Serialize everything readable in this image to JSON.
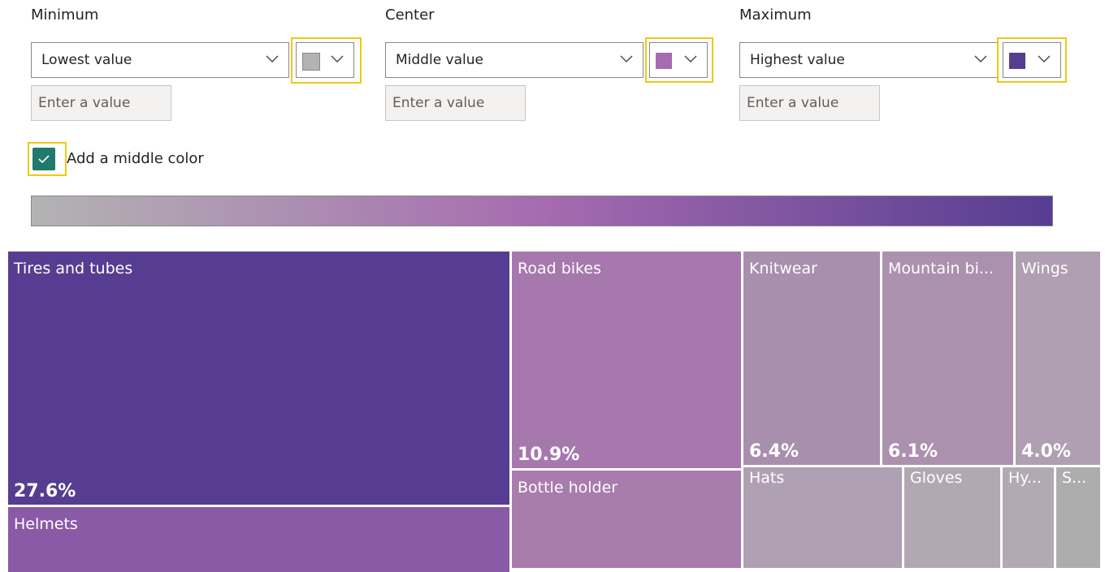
{
  "color_settings": {
    "minimum": {
      "label": "Minimum",
      "dropdown": "Lowest value",
      "input_placeholder": "Enter a value"
    },
    "center": {
      "label": "Center",
      "dropdown": "Middle value",
      "input_placeholder": "Enter a value"
    },
    "maximum": {
      "label": "Maximum",
      "dropdown": "Highest value",
      "input_placeholder": "Enter a value"
    },
    "middle_color_checkbox": "Add a middle color"
  },
  "treemap": {
    "tiles": [
      {
        "label": "Tires and tubes",
        "value": "27.6%"
      },
      {
        "label": "Helmets"
      },
      {
        "label": "Road bikes",
        "value": "10.9%"
      },
      {
        "label": "Bottle holder"
      },
      {
        "label": "Knitwear",
        "value": "6.4%"
      },
      {
        "label": "Mountain bi...",
        "value": "6.1%"
      },
      {
        "label": "Wings",
        "value": "4.0%"
      },
      {
        "label": "Hats"
      },
      {
        "label": "Gloves"
      },
      {
        "label": "Hy..."
      },
      {
        "label": "S..."
      }
    ]
  }
}
